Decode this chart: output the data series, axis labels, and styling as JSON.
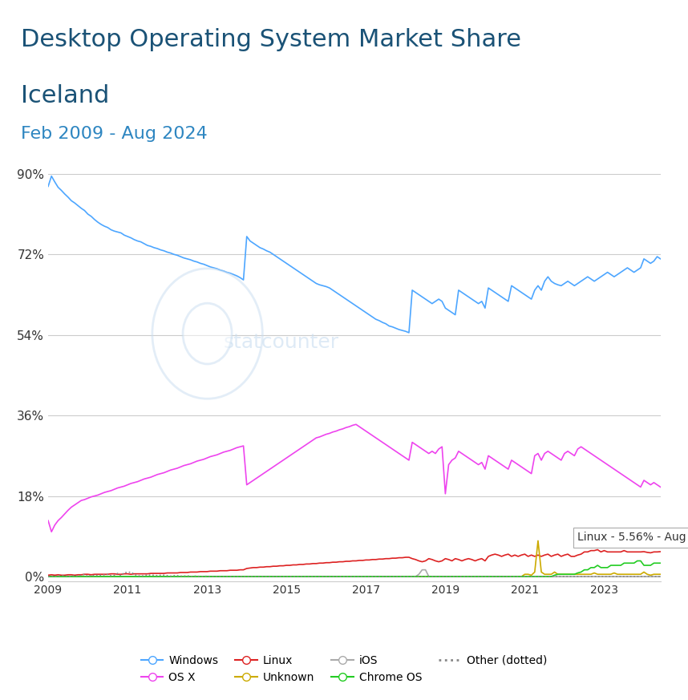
{
  "title_line1": "Desktop Operating System Market Share",
  "title_line2": "Iceland",
  "subtitle": "Feb 2009 - Aug 2024",
  "title_color": "#1a5276",
  "subtitle_color": "#2e86c1",
  "title_fontsize": 22,
  "subtitle_fontsize": 16,
  "background_color": "#ffffff",
  "plot_bg_color": "#ffffff",
  "grid_color": "#cccccc",
  "yticks": [
    0,
    18,
    36,
    54,
    72,
    90
  ],
  "ytick_labels": [
    "0%",
    "18%",
    "36%",
    "54%",
    "72%",
    "90%"
  ],
  "watermark": "statcounter",
  "annotation": "Linux - 5.56% - Aug 2024",
  "colors": {
    "Windows": "#4da6ff",
    "OS X": "#ee44ee",
    "Linux": "#dd2222",
    "Unknown": "#ccaa00",
    "iOS": "#aaaaaa",
    "Chrome OS": "#22cc22",
    "Other": "#888888"
  },
  "windows": [
    87.2,
    89.5,
    88.2,
    87.0,
    86.3,
    85.5,
    84.8,
    84.0,
    83.5,
    82.9,
    82.3,
    81.8,
    81.0,
    80.5,
    79.8,
    79.2,
    78.7,
    78.3,
    78.0,
    77.5,
    77.2,
    77.0,
    76.8,
    76.3,
    76.0,
    75.7,
    75.3,
    75.0,
    74.8,
    74.4,
    74.0,
    73.8,
    73.5,
    73.3,
    73.0,
    72.8,
    72.5,
    72.3,
    72.0,
    71.8,
    71.5,
    71.2,
    71.0,
    70.8,
    70.5,
    70.3,
    70.0,
    69.8,
    69.5,
    69.2,
    69.0,
    68.8,
    68.5,
    68.3,
    68.0,
    67.8,
    67.5,
    67.2,
    66.8,
    66.3,
    76.0,
    75.0,
    74.5,
    74.0,
    73.5,
    73.2,
    72.8,
    72.5,
    72.0,
    71.5,
    71.0,
    70.5,
    70.0,
    69.5,
    69.0,
    68.5,
    68.0,
    67.5,
    67.0,
    66.5,
    66.0,
    65.5,
    65.2,
    65.0,
    64.8,
    64.5,
    64.0,
    63.5,
    63.0,
    62.5,
    62.0,
    61.5,
    61.0,
    60.5,
    60.0,
    59.5,
    59.0,
    58.5,
    58.0,
    57.5,
    57.2,
    56.8,
    56.5,
    56.0,
    55.8,
    55.5,
    55.2,
    55.0,
    54.8,
    54.5,
    64.0,
    63.5,
    63.0,
    62.5,
    62.0,
    61.5,
    61.0,
    61.5,
    62.0,
    61.5,
    60.0,
    59.5,
    59.0,
    58.5,
    64.0,
    63.5,
    63.0,
    62.5,
    62.0,
    61.5,
    61.0,
    61.5,
    60.0,
    64.5,
    64.0,
    63.5,
    63.0,
    62.5,
    62.0,
    61.5,
    65.0,
    64.5,
    64.0,
    63.5,
    63.0,
    62.5,
    62.0,
    64.0,
    65.0,
    64.0,
    66.0,
    67.0,
    66.0,
    65.5,
    65.2,
    65.0,
    65.5,
    66.0,
    65.5,
    65.0,
    65.5,
    66.0,
    66.5,
    67.0,
    66.5,
    66.0,
    66.5,
    67.0,
    67.5,
    68.0,
    67.5,
    67.0,
    67.5,
    68.0,
    68.5,
    69.0,
    68.5,
    68.0,
    68.5,
    69.0,
    71.0,
    70.5,
    70.0,
    70.5,
    71.5,
    71.0
  ],
  "osx": [
    12.5,
    10.0,
    11.5,
    12.5,
    13.2,
    14.0,
    14.8,
    15.5,
    16.0,
    16.5,
    17.0,
    17.2,
    17.5,
    17.8,
    18.0,
    18.2,
    18.5,
    18.8,
    19.0,
    19.2,
    19.5,
    19.8,
    20.0,
    20.2,
    20.5,
    20.8,
    21.0,
    21.2,
    21.5,
    21.8,
    22.0,
    22.2,
    22.5,
    22.8,
    23.0,
    23.2,
    23.5,
    23.8,
    24.0,
    24.2,
    24.5,
    24.8,
    25.0,
    25.2,
    25.5,
    25.8,
    26.0,
    26.2,
    26.5,
    26.8,
    27.0,
    27.2,
    27.5,
    27.8,
    28.0,
    28.2,
    28.5,
    28.8,
    29.0,
    29.2,
    20.5,
    21.0,
    21.5,
    22.0,
    22.5,
    23.0,
    23.5,
    24.0,
    24.5,
    25.0,
    25.5,
    26.0,
    26.5,
    27.0,
    27.5,
    28.0,
    28.5,
    29.0,
    29.5,
    30.0,
    30.5,
    31.0,
    31.2,
    31.5,
    31.8,
    32.0,
    32.3,
    32.5,
    32.8,
    33.0,
    33.3,
    33.5,
    33.8,
    34.0,
    33.5,
    33.0,
    32.5,
    32.0,
    31.5,
    31.0,
    30.5,
    30.0,
    29.5,
    29.0,
    28.5,
    28.0,
    27.5,
    27.0,
    26.5,
    26.0,
    30.0,
    29.5,
    29.0,
    28.5,
    28.0,
    27.5,
    28.0,
    27.5,
    28.5,
    29.0,
    18.5,
    25.0,
    26.0,
    26.5,
    28.0,
    27.5,
    27.0,
    26.5,
    26.0,
    25.5,
    25.0,
    25.5,
    24.0,
    27.0,
    26.5,
    26.0,
    25.5,
    25.0,
    24.5,
    24.0,
    26.0,
    25.5,
    25.0,
    24.5,
    24.0,
    23.5,
    23.0,
    27.0,
    27.5,
    26.0,
    27.5,
    28.0,
    27.5,
    27.0,
    26.5,
    26.0,
    27.5,
    28.0,
    27.5,
    27.0,
    28.5,
    29.0,
    28.5,
    28.0,
    27.5,
    27.0,
    26.5,
    26.0,
    25.5,
    25.0,
    24.5,
    24.0,
    23.5,
    23.0,
    22.5,
    22.0,
    21.5,
    21.0,
    20.5,
    20.0,
    21.5,
    21.0,
    20.5,
    21.0,
    20.5,
    20.0
  ],
  "linux": [
    0.3,
    0.4,
    0.3,
    0.4,
    0.3,
    0.3,
    0.4,
    0.4,
    0.3,
    0.4,
    0.4,
    0.5,
    0.5,
    0.4,
    0.5,
    0.5,
    0.5,
    0.5,
    0.5,
    0.6,
    0.6,
    0.5,
    0.5,
    0.6,
    0.6,
    0.5,
    0.6,
    0.6,
    0.6,
    0.6,
    0.6,
    0.7,
    0.7,
    0.7,
    0.7,
    0.7,
    0.8,
    0.8,
    0.8,
    0.8,
    0.9,
    0.9,
    0.9,
    1.0,
    1.0,
    1.0,
    1.1,
    1.1,
    1.1,
    1.2,
    1.2,
    1.2,
    1.3,
    1.3,
    1.3,
    1.4,
    1.4,
    1.4,
    1.5,
    1.5,
    1.8,
    1.9,
    2.0,
    2.0,
    2.1,
    2.1,
    2.2,
    2.2,
    2.3,
    2.3,
    2.4,
    2.4,
    2.5,
    2.5,
    2.6,
    2.6,
    2.7,
    2.7,
    2.8,
    2.8,
    2.9,
    2.9,
    3.0,
    3.0,
    3.1,
    3.1,
    3.2,
    3.2,
    3.3,
    3.3,
    3.4,
    3.4,
    3.5,
    3.5,
    3.6,
    3.6,
    3.7,
    3.7,
    3.8,
    3.8,
    3.9,
    3.9,
    4.0,
    4.0,
    4.1,
    4.1,
    4.2,
    4.2,
    4.3,
    4.3,
    4.0,
    3.8,
    3.5,
    3.3,
    3.5,
    4.0,
    3.8,
    3.5,
    3.3,
    3.5,
    4.0,
    3.8,
    3.5,
    4.0,
    3.8,
    3.5,
    3.8,
    4.0,
    3.8,
    3.5,
    3.8,
    4.0,
    3.5,
    4.5,
    4.8,
    5.0,
    4.8,
    4.5,
    4.8,
    5.0,
    4.5,
    4.8,
    4.5,
    4.8,
    5.0,
    4.5,
    4.8,
    4.5,
    4.8,
    4.5,
    4.8,
    5.0,
    4.5,
    4.8,
    5.0,
    4.5,
    4.8,
    5.0,
    4.5,
    4.5,
    4.8,
    5.0,
    5.5,
    5.5,
    5.8,
    5.8,
    6.0,
    5.5,
    5.8,
    5.5,
    5.5,
    5.5,
    5.5,
    5.5,
    5.8,
    5.5,
    5.5,
    5.5,
    5.5,
    5.5,
    5.56,
    5.4,
    5.3,
    5.5,
    5.5,
    5.56
  ],
  "unknown": [
    0.0,
    0.0,
    0.0,
    0.0,
    0.0,
    0.0,
    0.0,
    0.0,
    0.0,
    0.0,
    0.0,
    0.0,
    0.0,
    0.0,
    0.0,
    0.0,
    0.0,
    0.0,
    0.0,
    0.0,
    0.0,
    0.0,
    0.0,
    0.0,
    0.0,
    0.0,
    0.0,
    0.0,
    0.0,
    0.0,
    0.0,
    0.0,
    0.0,
    0.0,
    0.0,
    0.0,
    0.0,
    0.0,
    0.0,
    0.0,
    0.0,
    0.0,
    0.0,
    0.0,
    0.0,
    0.0,
    0.0,
    0.0,
    0.0,
    0.0,
    0.0,
    0.0,
    0.0,
    0.0,
    0.0,
    0.0,
    0.0,
    0.0,
    0.0,
    0.0,
    0.0,
    0.0,
    0.0,
    0.0,
    0.0,
    0.0,
    0.0,
    0.0,
    0.0,
    0.0,
    0.0,
    0.0,
    0.0,
    0.0,
    0.0,
    0.0,
    0.0,
    0.0,
    0.0,
    0.0,
    0.0,
    0.0,
    0.0,
    0.0,
    0.0,
    0.0,
    0.0,
    0.0,
    0.0,
    0.0,
    0.0,
    0.0,
    0.0,
    0.0,
    0.0,
    0.0,
    0.0,
    0.0,
    0.0,
    0.0,
    0.0,
    0.0,
    0.0,
    0.0,
    0.0,
    0.0,
    0.0,
    0.0,
    0.0,
    0.0,
    0.0,
    0.0,
    0.0,
    0.0,
    0.0,
    0.0,
    0.0,
    0.0,
    0.0,
    0.0,
    0.0,
    0.0,
    0.0,
    0.0,
    0.0,
    0.0,
    0.0,
    0.0,
    0.0,
    0.0,
    0.0,
    0.0,
    0.0,
    0.0,
    0.0,
    0.0,
    0.0,
    0.0,
    0.0,
    0.0,
    0.0,
    0.0,
    0.0,
    0.0,
    0.5,
    0.5,
    0.3,
    1.0,
    8.0,
    1.0,
    0.5,
    0.5,
    0.5,
    1.0,
    0.5,
    0.5,
    0.5,
    0.5,
    0.5,
    0.5,
    0.5,
    0.5,
    0.5,
    0.5,
    0.5,
    0.8,
    0.5,
    0.5,
    0.5,
    0.5,
    0.5,
    0.8,
    0.5,
    0.5,
    0.5,
    0.5,
    0.5,
    0.5,
    0.5,
    0.5,
    1.0,
    0.5,
    0.3,
    0.5,
    0.5,
    0.5
  ],
  "ios": [
    0.0,
    0.0,
    0.0,
    0.0,
    0.0,
    0.0,
    0.0,
    0.0,
    0.0,
    0.0,
    0.0,
    0.0,
    0.0,
    0.0,
    0.0,
    0.0,
    0.0,
    0.0,
    0.0,
    0.0,
    0.0,
    0.0,
    0.0,
    0.0,
    0.0,
    0.0,
    0.0,
    0.0,
    0.0,
    0.0,
    0.0,
    0.0,
    0.0,
    0.0,
    0.0,
    0.0,
    0.0,
    0.0,
    0.0,
    0.0,
    0.0,
    0.0,
    0.0,
    0.0,
    0.0,
    0.0,
    0.0,
    0.0,
    0.0,
    0.0,
    0.0,
    0.0,
    0.0,
    0.0,
    0.0,
    0.0,
    0.0,
    0.0,
    0.0,
    0.0,
    0.0,
    0.0,
    0.0,
    0.0,
    0.0,
    0.0,
    0.0,
    0.0,
    0.0,
    0.0,
    0.0,
    0.0,
    0.0,
    0.0,
    0.0,
    0.0,
    0.0,
    0.0,
    0.0,
    0.0,
    0.0,
    0.0,
    0.0,
    0.0,
    0.0,
    0.0,
    0.0,
    0.0,
    0.0,
    0.0,
    0.0,
    0.0,
    0.0,
    0.0,
    0.0,
    0.0,
    0.0,
    0.0,
    0.0,
    0.0,
    0.0,
    0.0,
    0.0,
    0.0,
    0.0,
    0.0,
    0.0,
    0.0,
    0.0,
    0.0,
    0.0,
    0.0,
    0.5,
    1.5,
    1.5,
    0.0,
    0.0,
    0.0,
    0.0,
    0.0,
    0.0,
    0.0,
    0.0,
    0.0,
    0.0,
    0.0,
    0.0,
    0.0,
    0.0,
    0.0,
    0.0,
    0.0,
    0.0,
    0.0,
    0.0,
    0.0,
    0.0,
    0.0,
    0.0,
    0.0,
    0.0,
    0.0,
    0.0,
    0.0,
    0.0,
    0.0,
    0.0,
    0.0,
    0.0,
    0.0,
    0.0,
    0.0,
    0.0,
    0.0,
    0.0,
    0.0,
    0.0,
    0.0,
    0.0,
    0.0,
    0.0,
    0.0,
    0.0,
    0.0,
    0.0,
    0.0,
    0.0,
    0.0,
    0.0,
    0.0,
    0.0,
    0.0,
    0.0,
    0.0,
    0.0,
    0.0,
    0.0,
    0.0,
    0.0,
    0.0,
    0.0,
    0.0,
    0.0,
    0.0,
    0.0,
    0.0
  ],
  "chromeos": [
    0.0,
    0.0,
    0.0,
    0.0,
    0.0,
    0.0,
    0.0,
    0.0,
    0.0,
    0.0,
    0.0,
    0.0,
    0.0,
    0.0,
    0.0,
    0.0,
    0.0,
    0.0,
    0.0,
    0.0,
    0.0,
    0.0,
    0.0,
    0.0,
    0.0,
    0.0,
    0.0,
    0.0,
    0.0,
    0.0,
    0.0,
    0.0,
    0.0,
    0.0,
    0.0,
    0.0,
    0.0,
    0.0,
    0.0,
    0.0,
    0.0,
    0.0,
    0.0,
    0.0,
    0.0,
    0.0,
    0.0,
    0.0,
    0.0,
    0.0,
    0.0,
    0.0,
    0.0,
    0.0,
    0.0,
    0.0,
    0.0,
    0.0,
    0.0,
    0.0,
    0.0,
    0.0,
    0.0,
    0.0,
    0.0,
    0.0,
    0.0,
    0.0,
    0.0,
    0.0,
    0.0,
    0.0,
    0.0,
    0.0,
    0.0,
    0.0,
    0.0,
    0.0,
    0.0,
    0.0,
    0.0,
    0.0,
    0.0,
    0.0,
    0.0,
    0.0,
    0.0,
    0.0,
    0.0,
    0.0,
    0.0,
    0.0,
    0.0,
    0.0,
    0.0,
    0.0,
    0.0,
    0.0,
    0.0,
    0.0,
    0.0,
    0.0,
    0.0,
    0.0,
    0.0,
    0.0,
    0.0,
    0.0,
    0.0,
    0.0,
    0.0,
    0.0,
    0.0,
    0.0,
    0.0,
    0.0,
    0.0,
    0.0,
    0.0,
    0.0,
    0.0,
    0.0,
    0.0,
    0.0,
    0.0,
    0.0,
    0.0,
    0.0,
    0.0,
    0.0,
    0.0,
    0.0,
    0.0,
    0.0,
    0.0,
    0.0,
    0.0,
    0.0,
    0.0,
    0.0,
    0.0,
    0.0,
    0.0,
    0.0,
    0.0,
    0.0,
    0.0,
    0.0,
    0.0,
    0.0,
    0.0,
    0.0,
    0.0,
    0.3,
    0.5,
    0.5,
    0.5,
    0.5,
    0.5,
    0.5,
    0.8,
    1.0,
    1.5,
    1.5,
    2.0,
    2.0,
    2.5,
    2.0,
    2.0,
    2.0,
    2.5,
    2.5,
    2.5,
    2.5,
    3.0,
    3.0,
    3.0,
    3.0,
    3.5,
    3.5,
    2.5,
    2.5,
    2.5,
    3.0,
    3.0,
    3.0
  ],
  "other": [
    0.0,
    0.1,
    0.0,
    0.1,
    0.2,
    0.2,
    0.0,
    0.1,
    0.2,
    0.1,
    0.3,
    0.5,
    0.0,
    0.3,
    0.2,
    0.3,
    0.3,
    0.4,
    0.5,
    0.2,
    0.3,
    0.7,
    0.2,
    0.9,
    0.9,
    1.0,
    0.5,
    0.2,
    0.1,
    0.2,
    0.4,
    0.3,
    0.3,
    0.2,
    0.3,
    0.3,
    0.2,
    0.1,
    0.2,
    0.2,
    0.1,
    0.1,
    0.2,
    0.0,
    0.1,
    0.1,
    0.0,
    0.0,
    0.1,
    0.0,
    0.0,
    0.0,
    0.0,
    0.0,
    0.0,
    0.0,
    0.0,
    0.0,
    0.0,
    0.0,
    0.0,
    0.0,
    0.0,
    0.0,
    0.0,
    0.0,
    0.0,
    0.0,
    0.0,
    0.0,
    0.0,
    0.0,
    0.0,
    0.0,
    0.0,
    0.0,
    0.0,
    0.0,
    0.0,
    0.0,
    0.0,
    0.0,
    0.0,
    0.0,
    0.0,
    0.0,
    0.0,
    0.0,
    0.0,
    0.0,
    0.0,
    0.0,
    0.0,
    0.0,
    0.0,
    0.0,
    0.0,
    0.0,
    0.0,
    0.0,
    0.0,
    0.0,
    0.0,
    0.0,
    0.0,
    0.0,
    0.0,
    0.0,
    0.0,
    0.0,
    0.0,
    0.0,
    0.0,
    0.0,
    0.0,
    0.0,
    0.0,
    0.0,
    0.0,
    0.0,
    0.0,
    0.0,
    0.0,
    0.0,
    0.0,
    0.0,
    0.0,
    0.0,
    0.0,
    0.0,
    0.0,
    0.0,
    0.0,
    0.0,
    0.0,
    0.0,
    0.0,
    0.0,
    0.0,
    0.0,
    0.0,
    0.0,
    0.0,
    0.0,
    0.0,
    0.0,
    0.0,
    0.0,
    0.0,
    0.0,
    0.0,
    0.0,
    0.0,
    0.0,
    0.0,
    0.0,
    0.0,
    0.0,
    0.0,
    0.0,
    0.0,
    0.0,
    0.0,
    0.0,
    0.0,
    0.0,
    0.0,
    0.0,
    0.0,
    0.0,
    0.0,
    0.0,
    0.0,
    0.0,
    0.0,
    0.0,
    0.0,
    0.0,
    0.0,
    0.0,
    0.0,
    0.0,
    0.0,
    0.0,
    0.0,
    0.0
  ]
}
